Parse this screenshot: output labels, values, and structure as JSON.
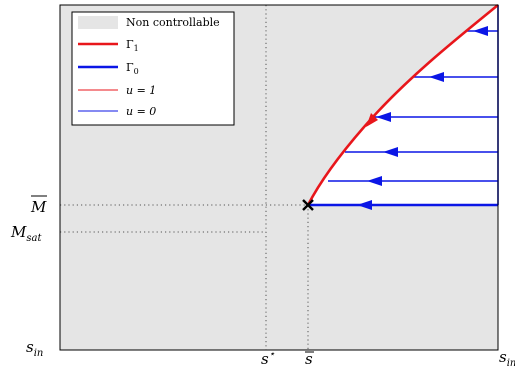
{
  "colors": {
    "region_fill": "#e5e5e5",
    "gamma1": "#e8161b",
    "gamma0": "#0b16e6",
    "axis": "#000000",
    "dotted": "#555555"
  },
  "legend": {
    "non_controllable": "Non controllable",
    "gamma1_label": "Γ",
    "gamma1_sub": "1",
    "gamma0_label": "Γ",
    "gamma0_sub": "0",
    "u1_label": "u = 1",
    "u0_label": "u = 0"
  },
  "axis_labels": {
    "y_mbar": "M",
    "y_msat": "M",
    "y_msat_sub": "sat",
    "y_sin": "s",
    "y_sin_sub": "in",
    "x_sstar": "s",
    "x_sstar_sup": "⋆",
    "x_sbar": "s",
    "x_sin": "s",
    "x_sin_sub": "in"
  },
  "icons": {
    "singular_point": "cross-marker-icon",
    "flow_arrow": "left-arrow-icon"
  }
}
